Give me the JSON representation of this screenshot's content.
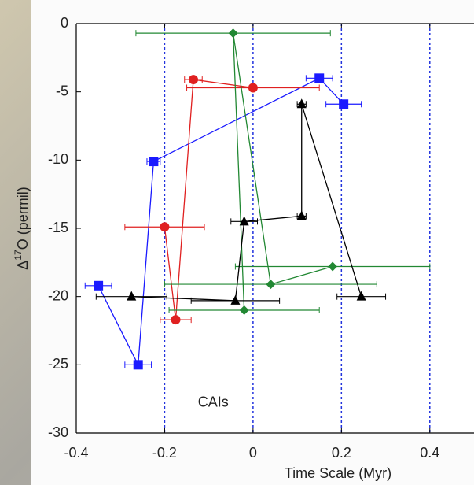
{
  "chart_data": {
    "type": "scatter",
    "xlabel": "Time Scale (Myr)",
    "ylabel": {
      "prefix": "Δ",
      "sup": "17",
      "rest": "O (permil)"
    },
    "annotation": {
      "text": "CAIs",
      "x": -0.09,
      "y": -27.8
    },
    "xlim": [
      -0.4,
      0.5
    ],
    "ylim": [
      -30,
      0
    ],
    "xticks": [
      -0.4,
      -0.2,
      0,
      0.2,
      0.4
    ],
    "yticks": [
      0,
      -5,
      -10,
      -15,
      -20,
      -25,
      -30
    ],
    "vlines": {
      "values": [
        -0.2,
        0,
        0.2,
        0.4
      ],
      "color": "#2233dd"
    },
    "series": [
      {
        "marker": "square",
        "color": "#1a1aff",
        "x": [
          -0.35,
          -0.26,
          -0.225,
          0.15,
          0.205
        ],
        "values": [
          -19.2,
          -25,
          -10.1,
          -4,
          -5.9
        ],
        "xerr": [
          0.03,
          0.03,
          0.015,
          0.03,
          0.04
        ]
      },
      {
        "marker": "circle",
        "color": "#e02020",
        "x": [
          -0.2,
          -0.175,
          -0.135,
          0
        ],
        "values": [
          -14.9,
          -21.7,
          -4.1,
          -4.7
        ],
        "xerr": [
          0.09,
          0.035,
          0.02,
          0.15
        ]
      },
      {
        "marker": "diamond",
        "color": "#228833",
        "x": [
          -0.02,
          -0.045,
          0.04,
          0.18
        ],
        "values": [
          -21,
          -0.7,
          -19.1,
          -17.8
        ],
        "xerr": [
          0.17,
          0.22,
          0.24,
          0.22
        ]
      },
      {
        "marker": "triangle",
        "color": "#000000",
        "x": [
          -0.275,
          -0.04,
          -0.02,
          0.11,
          0.11,
          0.245
        ],
        "values": [
          -20,
          -20.3,
          -14.5,
          -14.1,
          -5.9,
          -20
        ],
        "xerr": [
          0.08,
          0.1,
          0.03,
          0.01,
          0.01,
          0.055
        ]
      }
    ]
  }
}
